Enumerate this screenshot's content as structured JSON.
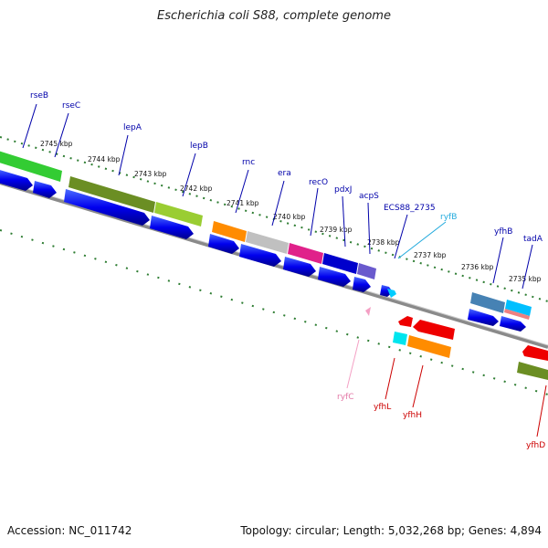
{
  "title": "Escherichia coli S88, complete genome",
  "footer": {
    "accession": "Accession: NC_011742",
    "summary": "Topology: circular; Length: 5,032,268 bp; Genes: 4,894"
  },
  "colors": {
    "backbone": "#888888",
    "tick_green": "#2e7d32",
    "label_blue": "#0000aa",
    "label_red": "#cc0000",
    "label_pink": "#e377a6",
    "label_cyan": "#22aadd"
  },
  "kbp_ticks": [
    "2745 kbp",
    "2744 kbp",
    "2743 kbp",
    "2742 kbp",
    "2741 kbp",
    "2740 kbp",
    "2739 kbp",
    "2738 kbp",
    "2737 kbp",
    "2736 kbp",
    "2735 kbp"
  ],
  "gene_labels": {
    "rseB": "rseB",
    "rseC": "rseC",
    "lepA": "lepA",
    "lepB": "lepB",
    "rnc": "rnc",
    "era": "era",
    "recO": "recO",
    "pdxJ": "pdxJ",
    "acpS": "acpS",
    "ECS88_2735": "ECS88_2735",
    "ryfB": "ryfB",
    "yfhB": "yfhB",
    "tadA": "tadA",
    "ryfC": "ryfC",
    "yfhL": "yfhL",
    "yfhH": "yfhH",
    "yfhD": "yfhD"
  }
}
